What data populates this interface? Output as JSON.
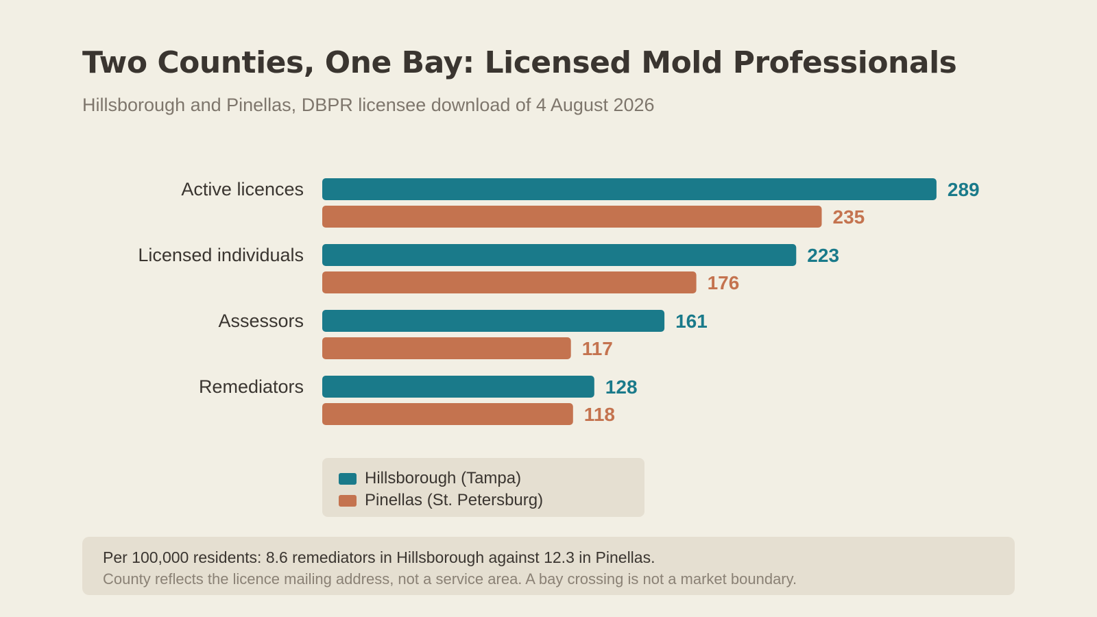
{
  "title": "Two Counties, One Bay: Licensed Mold Professionals",
  "subtitle": "Hillsborough and Pinellas, DBPR licensee download of 4 August 2026",
  "colors": {
    "hillsborough": "#1a7a8a",
    "pinellas": "#c4734f",
    "label_text": "#3a3530"
  },
  "chart_data": {
    "type": "bar",
    "orientation": "horizontal",
    "categories": [
      "Active licences",
      "Licensed individuals",
      "Assessors",
      "Remediators"
    ],
    "series": [
      {
        "name": "Hillsborough (Tampa)",
        "values": [
          289,
          223,
          161,
          128
        ]
      },
      {
        "name": "Pinellas (St. Petersburg)",
        "values": [
          235,
          176,
          117,
          118
        ]
      }
    ],
    "xlim": [
      0,
      300
    ],
    "grid": false,
    "data_labels": true,
    "legend_placement": "bottom"
  },
  "legend": {
    "items": [
      {
        "label": "Hillsborough (Tampa)",
        "color": "#1a7a8a"
      },
      {
        "label": "Pinellas (St. Petersburg)",
        "color": "#c4734f"
      }
    ]
  },
  "note": {
    "main": "Per 100,000 residents: 8.6 remediators in Hillsborough against 12.3 in Pinellas.",
    "sub": "County reflects the licence mailing address, not a service area. A bay crossing is not a market boundary."
  }
}
